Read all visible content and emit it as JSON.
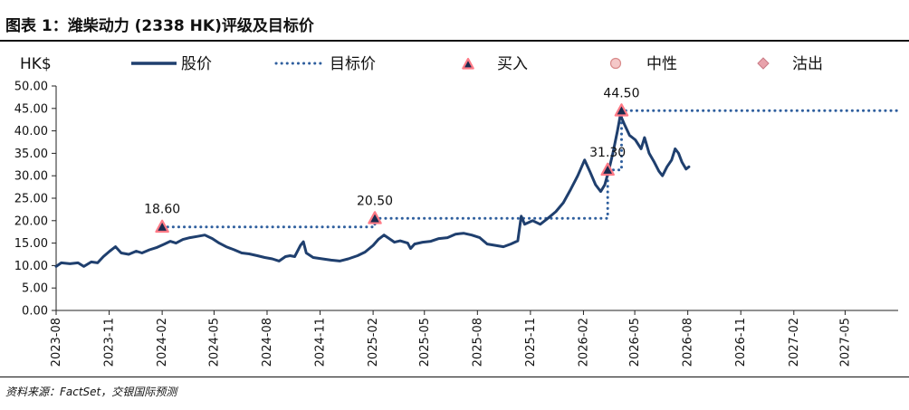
{
  "title": "图表 1：潍柴动力 (2338 HK)评级及目标价",
  "source": "资料来源：FactSet，交银国际预测",
  "chart_data": {
    "type": "line",
    "y_unit": "HK$",
    "ylim": [
      0,
      50
    ],
    "yticks": [
      "0.00",
      "5.00",
      "10.00",
      "15.00",
      "20.00",
      "25.00",
      "30.00",
      "35.00",
      "40.00",
      "45.00",
      "50.00"
    ],
    "xlim": [
      "2023-08",
      "2027-07"
    ],
    "xticks": [
      "2023-08",
      "2023-11",
      "2024-02",
      "2024-05",
      "2024-08",
      "2024-11",
      "2025-02",
      "2025-05",
      "2025-08",
      "2025-11",
      "2026-02",
      "2026-05",
      "2026-08",
      "2026-11",
      "2027-02",
      "2027-05"
    ],
    "grid": false,
    "legend_position": "top",
    "legend": [
      {
        "label": "股价",
        "kind": "line"
      },
      {
        "label": "目标价",
        "kind": "dotted"
      },
      {
        "label": "买入",
        "kind": "triangle"
      },
      {
        "label": "中性",
        "kind": "circle"
      },
      {
        "label": "沽出",
        "kind": "diamond"
      }
    ],
    "series": [
      {
        "name": "股价",
        "color": "#1f3f6e",
        "points": [
          [
            "2023-08-01",
            9.8
          ],
          [
            "2023-08-10",
            10.6
          ],
          [
            "2023-08-25",
            10.4
          ],
          [
            "2023-09-08",
            10.6
          ],
          [
            "2023-09-18",
            9.8
          ],
          [
            "2023-10-01",
            10.8
          ],
          [
            "2023-10-12",
            10.6
          ],
          [
            "2023-10-22",
            12.0
          ],
          [
            "2023-11-02",
            13.2
          ],
          [
            "2023-11-12",
            14.2
          ],
          [
            "2023-11-22",
            12.8
          ],
          [
            "2023-12-05",
            12.5
          ],
          [
            "2023-12-18",
            13.2
          ],
          [
            "2023-12-28",
            12.8
          ],
          [
            "2024-01-10",
            13.5
          ],
          [
            "2024-01-22",
            14.0
          ],
          [
            "2024-02-05",
            14.8
          ],
          [
            "2024-02-15",
            15.4
          ],
          [
            "2024-02-25",
            15.0
          ],
          [
            "2024-03-08",
            15.8
          ],
          [
            "2024-03-20",
            16.2
          ],
          [
            "2024-04-02",
            16.5
          ],
          [
            "2024-04-15",
            16.8
          ],
          [
            "2024-04-28",
            16.0
          ],
          [
            "2024-05-10",
            15.0
          ],
          [
            "2024-05-22",
            14.2
          ],
          [
            "2024-06-05",
            13.5
          ],
          [
            "2024-06-18",
            12.8
          ],
          [
            "2024-07-01",
            12.6
          ],
          [
            "2024-07-15",
            12.2
          ],
          [
            "2024-07-28",
            11.8
          ],
          [
            "2024-08-10",
            11.5
          ],
          [
            "2024-08-22",
            11.0
          ],
          [
            "2024-09-02",
            12.0
          ],
          [
            "2024-09-10",
            12.2
          ],
          [
            "2024-09-18",
            12.0
          ],
          [
            "2024-09-28",
            14.5
          ],
          [
            "2024-10-03",
            15.3
          ],
          [
            "2024-10-08",
            12.8
          ],
          [
            "2024-10-20",
            11.8
          ],
          [
            "2024-11-05",
            11.5
          ],
          [
            "2024-11-20",
            11.2
          ],
          [
            "2024-12-05",
            11.0
          ],
          [
            "2024-12-20",
            11.5
          ],
          [
            "2025-01-05",
            12.2
          ],
          [
            "2025-01-18",
            13.0
          ],
          [
            "2025-02-01",
            14.5
          ],
          [
            "2025-02-10",
            15.8
          ],
          [
            "2025-02-20",
            16.8
          ],
          [
            "2025-03-01",
            16.0
          ],
          [
            "2025-03-10",
            15.2
          ],
          [
            "2025-03-20",
            15.5
          ],
          [
            "2025-04-02",
            15.0
          ],
          [
            "2025-04-07",
            13.8
          ],
          [
            "2025-04-14",
            14.8
          ],
          [
            "2025-04-28",
            15.2
          ],
          [
            "2025-05-12",
            15.4
          ],
          [
            "2025-05-26",
            16.0
          ],
          [
            "2025-06-10",
            16.2
          ],
          [
            "2025-06-24",
            17.0
          ],
          [
            "2025-07-08",
            17.2
          ],
          [
            "2025-07-22",
            16.8
          ],
          [
            "2025-08-05",
            16.2
          ],
          [
            "2025-08-18",
            14.8
          ],
          [
            "2025-09-01",
            14.5
          ],
          [
            "2025-09-15",
            14.2
          ],
          [
            "2025-09-28",
            14.8
          ],
          [
            "2025-10-10",
            15.5
          ],
          [
            "2025-10-16",
            21.0
          ],
          [
            "2025-10-22",
            19.2
          ],
          [
            "2025-11-05",
            20.0
          ],
          [
            "2025-11-18",
            19.2
          ],
          [
            "2025-12-01",
            20.5
          ],
          [
            "2025-12-15",
            22.0
          ],
          [
            "2025-12-28",
            24.0
          ],
          [
            "2026-01-10",
            27.0
          ],
          [
            "2026-01-22",
            30.0
          ],
          [
            "2026-02-03",
            33.5
          ],
          [
            "2026-02-12",
            31.0
          ],
          [
            "2026-02-22",
            28.0
          ],
          [
            "2026-03-03",
            26.5
          ],
          [
            "2026-03-10",
            28.0
          ],
          [
            "2026-03-17",
            31.3
          ],
          [
            "2026-03-24",
            35.0
          ],
          [
            "2026-04-01",
            40.0
          ],
          [
            "2026-04-06",
            43.5
          ],
          [
            "2026-04-13",
            41.5
          ],
          [
            "2026-04-22",
            39.0
          ],
          [
            "2026-05-02",
            38.0
          ],
          [
            "2026-05-12",
            36.0
          ],
          [
            "2026-05-18",
            38.5
          ],
          [
            "2026-05-26",
            35.0
          ],
          [
            "2026-06-04",
            33.0
          ],
          [
            "2026-06-12",
            31.0
          ],
          [
            "2026-06-18",
            30.0
          ],
          [
            "2026-06-26",
            32.0
          ],
          [
            "2026-07-04",
            33.5
          ],
          [
            "2026-07-10",
            36.0
          ],
          [
            "2026-07-16",
            35.0
          ],
          [
            "2026-07-22",
            33.0
          ],
          [
            "2026-07-29",
            31.5
          ],
          [
            "2026-08-03",
            32.0
          ]
        ]
      },
      {
        "name": "目标价",
        "color": "#2f5f9e",
        "points": [
          [
            "2024-02-01",
            18.6
          ],
          [
            "2025-02-04",
            18.6
          ],
          [
            "2025-02-04",
            20.5
          ],
          [
            "2026-03-15",
            20.5
          ],
          [
            "2026-03-15",
            31.3
          ],
          [
            "2026-04-08",
            31.3
          ],
          [
            "2026-04-08",
            44.5
          ],
          [
            "2027-07-31",
            44.5
          ]
        ]
      }
    ],
    "ratings": [
      {
        "date": "2024-02-01",
        "value": 18.6,
        "rating": "买入",
        "label": "18.60"
      },
      {
        "date": "2025-02-04",
        "value": 20.5,
        "rating": "买入",
        "label": "20.50"
      },
      {
        "date": "2026-03-15",
        "value": 31.3,
        "rating": "买入",
        "label": "31.30"
      },
      {
        "date": "2026-04-08",
        "value": 44.5,
        "rating": "买入",
        "label": "44.50"
      }
    ]
  }
}
